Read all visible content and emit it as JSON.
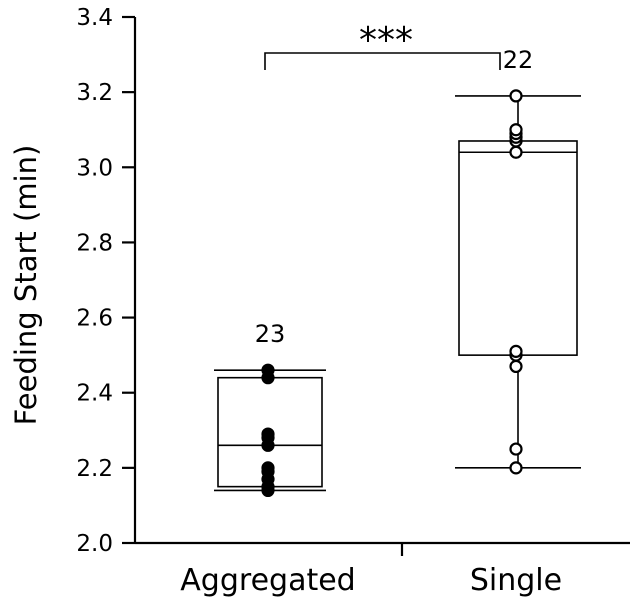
{
  "chart_data": {
    "type": "box",
    "title": "",
    "xlabel": "",
    "ylabel": "Feeding Start (min)",
    "ylim": [
      2.0,
      3.4
    ],
    "yticks": [
      "2.0",
      "2.2",
      "2.4",
      "2.6",
      "2.8",
      "3.0",
      "3.2",
      "3.4"
    ],
    "grid": false,
    "legend": "none",
    "categories": [
      "Aggregated",
      "Single"
    ],
    "groups": [
      {
        "category": "Aggregated",
        "n_label": "23",
        "marker": "filled",
        "min": 2.14,
        "q1": 2.15,
        "median": 2.26,
        "q3": 2.44,
        "max": 2.46,
        "points": [
          2.14,
          2.15,
          2.17,
          2.19,
          2.2,
          2.26,
          2.28,
          2.29,
          2.44,
          2.46
        ]
      },
      {
        "category": "Single",
        "n_label": "22",
        "marker": "open",
        "min": 2.2,
        "q1": 2.5,
        "median": 3.04,
        "q3": 3.07,
        "max": 3.19,
        "points": [
          2.2,
          2.25,
          2.47,
          2.5,
          2.51,
          3.04,
          3.07,
          3.08,
          3.09,
          3.1,
          3.19
        ]
      }
    ],
    "annotations": [
      {
        "type": "significance",
        "between": [
          "Aggregated",
          "Single"
        ],
        "text": "***"
      }
    ]
  }
}
